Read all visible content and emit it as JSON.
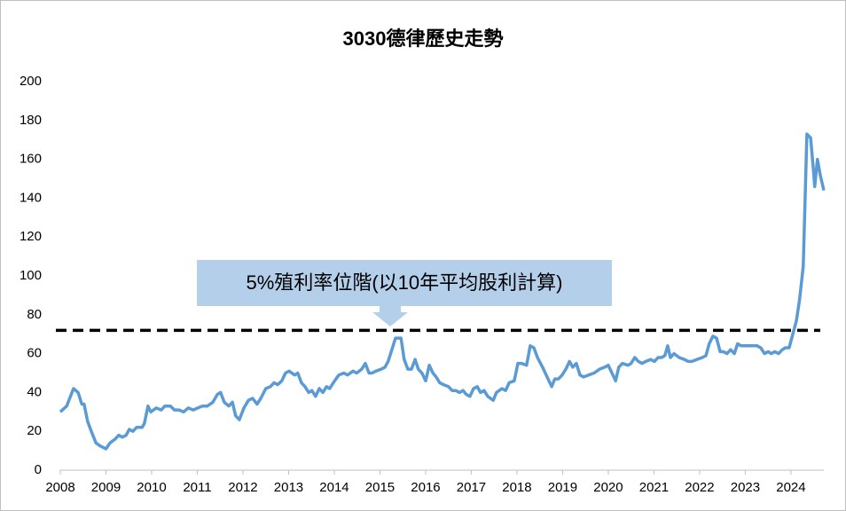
{
  "chart_data": {
    "type": "line",
    "title": "3030德律歷史走勢",
    "annotation": "5%殖利率位階(以10年平均股利計算)",
    "reference_line": {
      "value": 72,
      "color": "#000000",
      "dashed": true
    },
    "xlim": [
      2008,
      2024.72
    ],
    "xticks": [
      2008,
      2009,
      2010,
      2011,
      2012,
      2013,
      2014,
      2015,
      2016,
      2017,
      2018,
      2019,
      2020,
      2021,
      2022,
      2023,
      2024
    ],
    "ylim": [
      0,
      200
    ],
    "yticks": [
      0,
      20,
      40,
      60,
      80,
      100,
      120,
      140,
      160,
      180,
      200
    ],
    "grid": false,
    "series": [
      {
        "name": "3030德律",
        "color": "#5b9bd5",
        "x": [
          2008.0,
          2008.14,
          2008.29,
          2008.39,
          2008.47,
          2008.52,
          2008.6,
          2008.68,
          2008.78,
          2008.87,
          2009.0,
          2009.09,
          2009.2,
          2009.28,
          2009.36,
          2009.44,
          2009.51,
          2009.59,
          2009.67,
          2009.79,
          2009.84,
          2009.92,
          2009.98,
          2010.1,
          2010.21,
          2010.29,
          2010.41,
          2010.5,
          2010.6,
          2010.7,
          2010.8,
          2010.91,
          2011.01,
          2011.11,
          2011.22,
          2011.34,
          2011.44,
          2011.51,
          2011.59,
          2011.69,
          2011.77,
          2011.84,
          2011.92,
          2012.02,
          2012.12,
          2012.21,
          2012.31,
          2012.39,
          2012.5,
          2012.6,
          2012.68,
          2012.76,
          2012.85,
          2012.93,
          2013.01,
          2013.13,
          2013.2,
          2013.28,
          2013.36,
          2013.44,
          2013.51,
          2013.59,
          2013.67,
          2013.75,
          2013.83,
          2013.9,
          2013.98,
          2014.1,
          2014.21,
          2014.29,
          2014.41,
          2014.49,
          2014.6,
          2014.68,
          2014.76,
          2014.83,
          2014.91,
          2015.03,
          2015.11,
          2015.18,
          2015.26,
          2015.34,
          2015.46,
          2015.53,
          2015.61,
          2015.69,
          2015.77,
          2015.84,
          2015.92,
          2016.0,
          2016.08,
          2016.16,
          2016.23,
          2016.31,
          2016.39,
          2016.5,
          2016.58,
          2016.66,
          2016.74,
          2016.82,
          2016.89,
          2016.97,
          2017.05,
          2017.13,
          2017.2,
          2017.28,
          2017.36,
          2017.48,
          2017.55,
          2017.67,
          2017.75,
          2017.83,
          2017.94,
          2018.02,
          2018.1,
          2018.21,
          2018.29,
          2018.37,
          2018.45,
          2018.56,
          2018.68,
          2018.76,
          2018.83,
          2018.91,
          2018.99,
          2019.07,
          2019.15,
          2019.22,
          2019.3,
          2019.38,
          2019.46,
          2019.57,
          2019.69,
          2019.81,
          2019.92,
          2020.0,
          2020.08,
          2020.16,
          2020.23,
          2020.31,
          2020.43,
          2020.5,
          2020.58,
          2020.66,
          2020.74,
          2020.82,
          2020.93,
          2021.01,
          2021.09,
          2021.17,
          2021.24,
          2021.3,
          2021.36,
          2021.44,
          2021.55,
          2021.67,
          2021.75,
          2021.83,
          2021.94,
          2022.06,
          2022.14,
          2022.21,
          2022.29,
          2022.37,
          2022.45,
          2022.52,
          2022.6,
          2022.68,
          2022.76,
          2022.83,
          2022.91,
          2023.03,
          2023.15,
          2023.26,
          2023.34,
          2023.42,
          2023.5,
          2023.57,
          2023.65,
          2023.73,
          2023.81,
          2023.88,
          2023.96,
          2024.04,
          2024.12,
          2024.19,
          2024.27,
          2024.35,
          2024.43,
          2024.49,
          2024.52,
          2024.58,
          2024.64,
          2024.72
        ],
        "values": [
          30,
          33,
          42,
          40,
          34,
          34,
          25,
          20,
          14,
          12.5,
          11,
          14,
          16,
          18,
          17,
          18,
          21,
          20,
          22,
          22,
          24,
          33,
          30,
          32,
          31,
          33,
          33,
          31,
          31,
          30,
          32,
          31,
          32,
          33,
          33,
          35,
          39,
          40,
          35,
          33,
          35,
          28,
          26,
          32,
          36,
          37,
          34,
          37,
          42,
          43,
          45,
          44,
          46,
          50,
          51,
          49,
          50,
          45,
          43,
          40,
          41,
          38,
          42,
          40,
          43,
          42,
          45,
          49,
          50,
          49,
          51,
          50,
          52,
          55,
          50,
          50,
          51,
          52,
          53,
          56,
          62,
          68,
          68,
          57,
          52,
          52,
          57,
          52,
          50,
          46,
          54,
          50,
          48,
          45,
          44,
          43,
          41,
          41,
          40,
          41,
          39,
          38,
          42,
          43,
          40,
          41,
          38,
          36,
          40,
          42,
          41,
          45,
          46,
          55,
          55,
          54,
          64,
          63,
          58,
          53,
          47,
          43,
          47,
          47,
          49,
          52,
          56,
          53,
          55,
          49,
          48,
          49,
          50,
          52,
          53,
          54,
          50,
          46,
          53,
          55,
          54,
          55,
          58,
          56,
          55,
          56,
          57,
          56,
          58,
          58,
          59,
          64,
          58,
          60,
          58,
          57,
          56,
          56,
          57,
          58,
          59,
          65,
          69,
          68,
          61,
          61,
          60,
          62,
          60,
          65,
          64,
          64,
          64,
          64,
          63,
          60,
          61,
          60,
          61,
          60,
          62,
          63,
          63,
          70,
          77,
          88,
          105,
          173,
          171,
          155,
          146,
          160,
          152,
          144
        ]
      }
    ]
  }
}
